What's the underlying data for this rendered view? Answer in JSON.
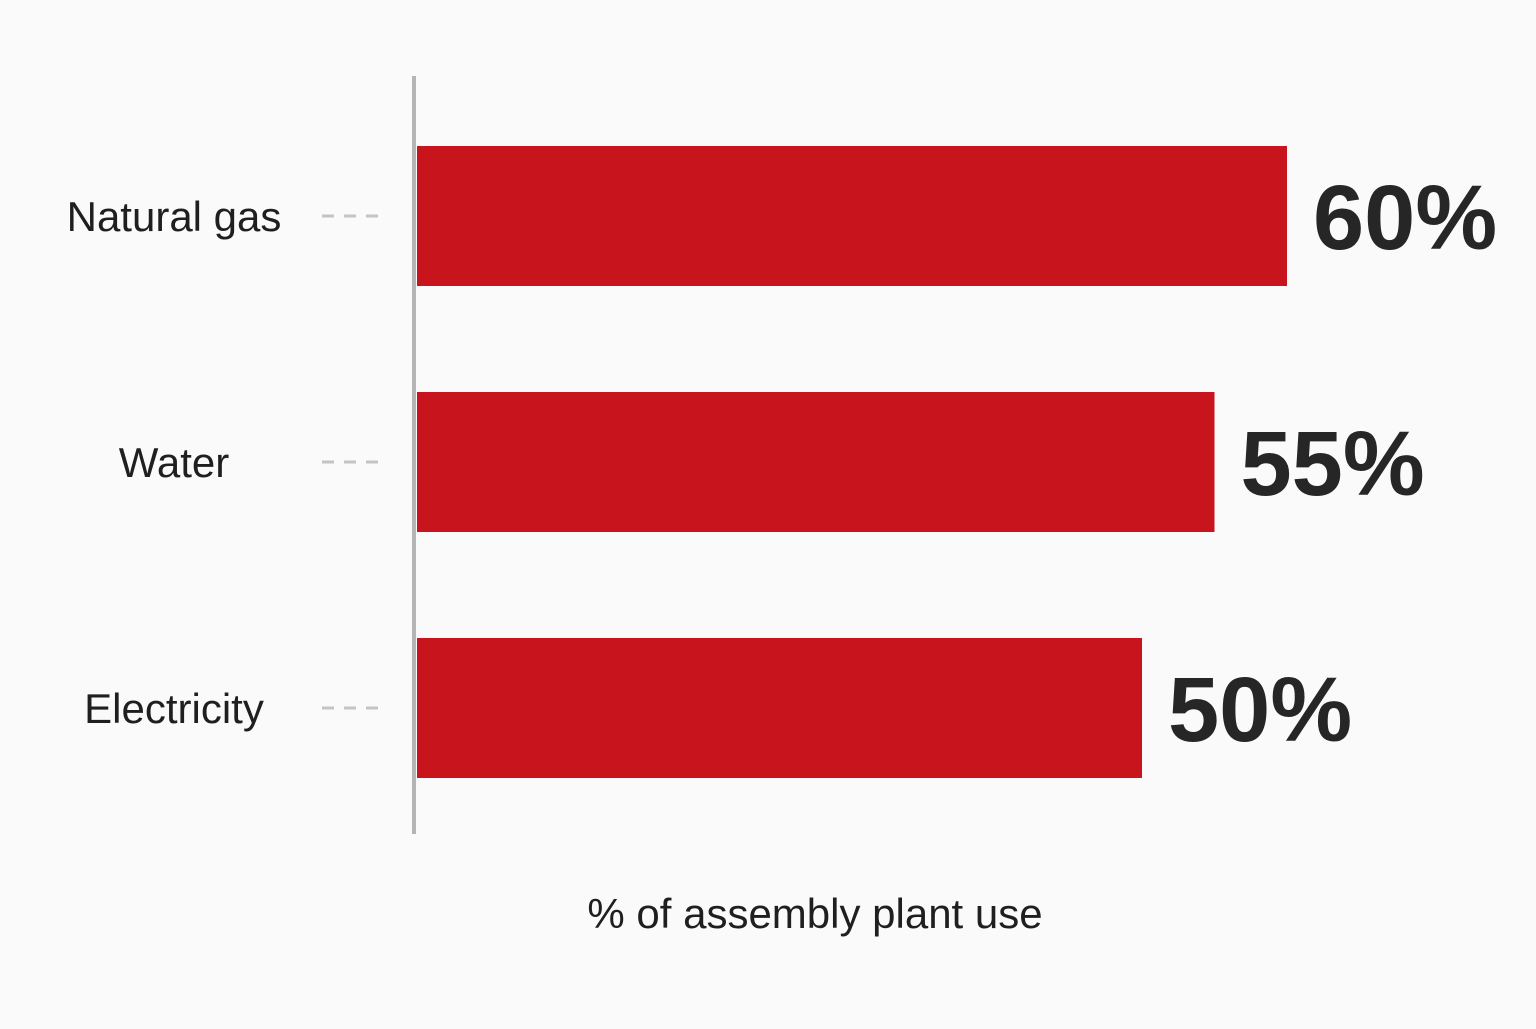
{
  "chart_data": {
    "type": "bar",
    "orientation": "horizontal",
    "categories": [
      "Natural gas",
      "Water",
      "Electricity"
    ],
    "values": [
      60,
      55,
      50
    ],
    "value_labels": [
      "60%",
      "55%",
      "50%"
    ],
    "xlabel": "% of assembly plant use",
    "ylabel": "",
    "title": "",
    "unit": "%",
    "grid": false,
    "legend": "none",
    "colors": {
      "bar": "#c8151d",
      "axis": "#b5b5b5",
      "leader": "#c4c4c4",
      "text": "#1f1f1f",
      "background": "#fafafa"
    }
  }
}
